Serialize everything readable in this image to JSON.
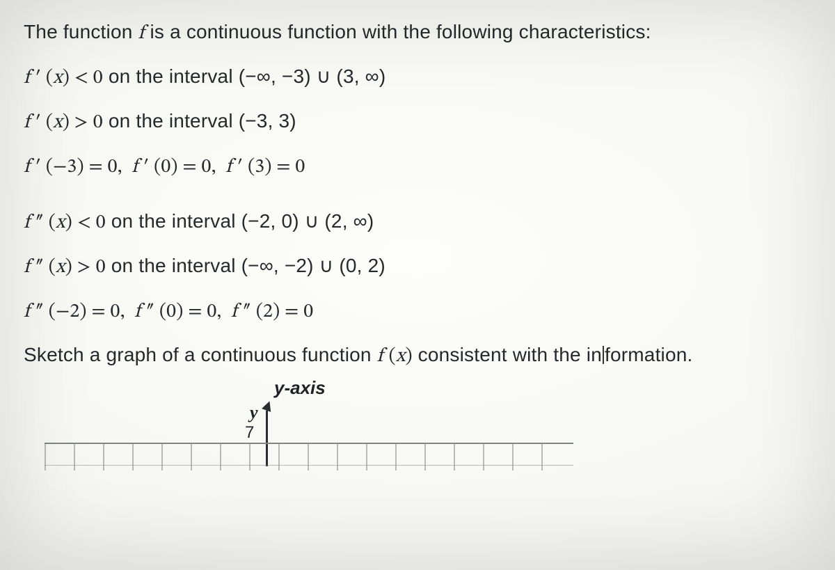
{
  "lines": {
    "intro": "The function  f  is a continuous function with the following characteristics:",
    "d1a": "f ′ (x) < 0",
    "d1a_tail": " on  the interval (−∞, −3) ∪ (3, ∞)",
    "d1b": "f ′ (x) > 0",
    "d1b_tail": "  on the interval (−3, 3)",
    "d1c": "f ′ (−3) = 0,  f ′ (0) = 0,  f ′ (3) = 0",
    "d2a": "f ″ (x) < 0",
    "d2a_tail": " on the interval (−2, 0) ∪ (2, ∞)",
    "d2b": "f ″ (x) > 0",
    "d2b_tail": " on the interval (−∞, −2) ∪ (0, 2)",
    "d2c": "f ″ (−2) = 0,  f ″ (0) = 0,  f ″ (2) = 0",
    "prompt_a": "Sketch a graph of a continuous function ",
    "prompt_fx": "f (x)",
    "prompt_b": "  consistent with the in",
    "prompt_c": "formation."
  },
  "axis": {
    "yaxis_label": "y-axis",
    "y_letter": "y",
    "seven": "7"
  },
  "grid": {
    "tick_count": 18,
    "tick_spacing_px": 42
  },
  "colors": {
    "text": "#26292b",
    "axis": "#2a2d2f",
    "grid": "#848986"
  }
}
